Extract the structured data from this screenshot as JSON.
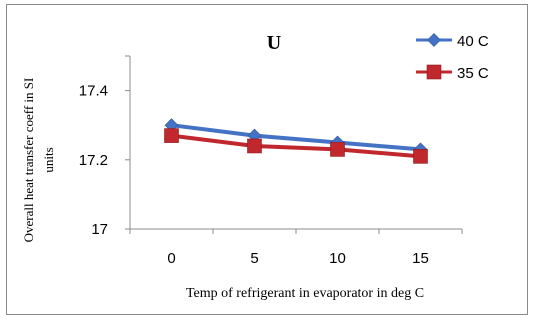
{
  "chart_data": {
    "type": "line",
    "title": "U",
    "xlabel": "Temp of refrigerant in evaporator in deg C",
    "ylabel_line1": "Overall heat transfer coeff in SI",
    "ylabel_line2": "units",
    "categories": [
      "0",
      "5",
      "10",
      "15"
    ],
    "yticks": [
      "17",
      "17.2",
      "17.4"
    ],
    "ylim": [
      17,
      17.5
    ],
    "grid": false,
    "legend_position": "top-right",
    "series": [
      {
        "name": "40 C",
        "color": "#4472C4",
        "marker": "diamond",
        "values": [
          17.3,
          17.27,
          17.25,
          17.23
        ]
      },
      {
        "name": "35 C",
        "color": "#C0282D",
        "marker": "square",
        "values": [
          17.27,
          17.24,
          17.23,
          17.21
        ]
      }
    ]
  }
}
